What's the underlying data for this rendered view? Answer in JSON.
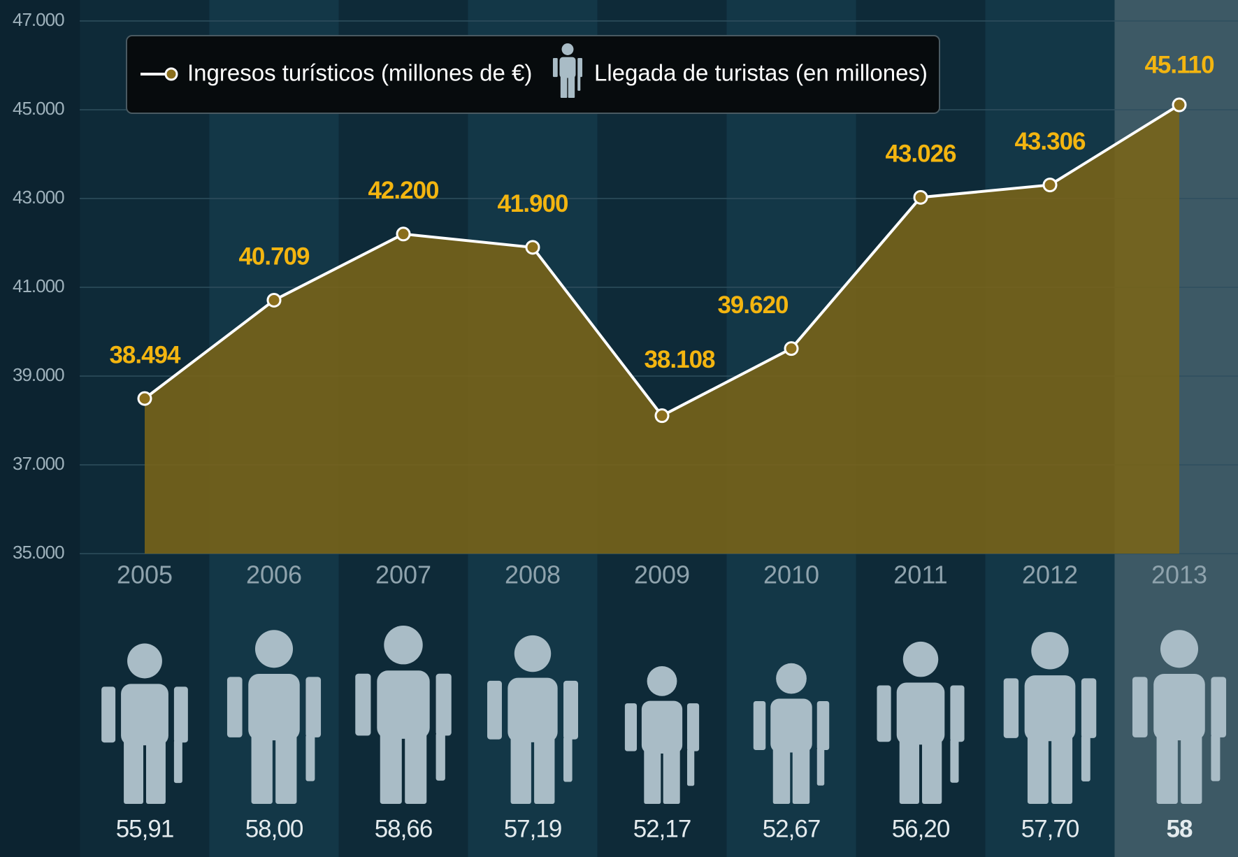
{
  "chart_data": {
    "type": "line",
    "categories": [
      "2005",
      "2006",
      "2007",
      "2008",
      "2009",
      "2010",
      "2011",
      "2012",
      "2013"
    ],
    "series": [
      {
        "name": "Ingresos turísticos (millones de €)",
        "color": "#7a6418",
        "values": [
          38494,
          40709,
          42200,
          41900,
          38108,
          39620,
          43026,
          43306,
          45110
        ],
        "value_labels": [
          "38.494",
          "40.709",
          "42.200",
          "41.900",
          "38.108",
          "39.620",
          "43.026",
          "43.306",
          "45.110"
        ]
      },
      {
        "name": "Llegada de turistas (en millones)",
        "color": "#a9bcc6",
        "values": [
          55.91,
          58.0,
          58.66,
          57.19,
          52.17,
          52.67,
          56.2,
          57.7,
          58
        ],
        "value_labels": [
          "55,91",
          "58,00",
          "58,66",
          "57,19",
          "52,17",
          "52,67",
          "56,20",
          "57,70",
          "58"
        ]
      }
    ],
    "ylim": [
      35000,
      47000
    ],
    "yticks": [
      {
        "value": 35000,
        "label": "35.000"
      },
      {
        "value": 37000,
        "label": "37.000"
      },
      {
        "value": 39000,
        "label": "39.000"
      },
      {
        "value": 41000,
        "label": "41.000"
      },
      {
        "value": 43000,
        "label": "43.000"
      },
      {
        "value": 45000,
        "label": "45.000"
      },
      {
        "value": 47000,
        "label": "47.000"
      }
    ],
    "grid": true
  }
}
